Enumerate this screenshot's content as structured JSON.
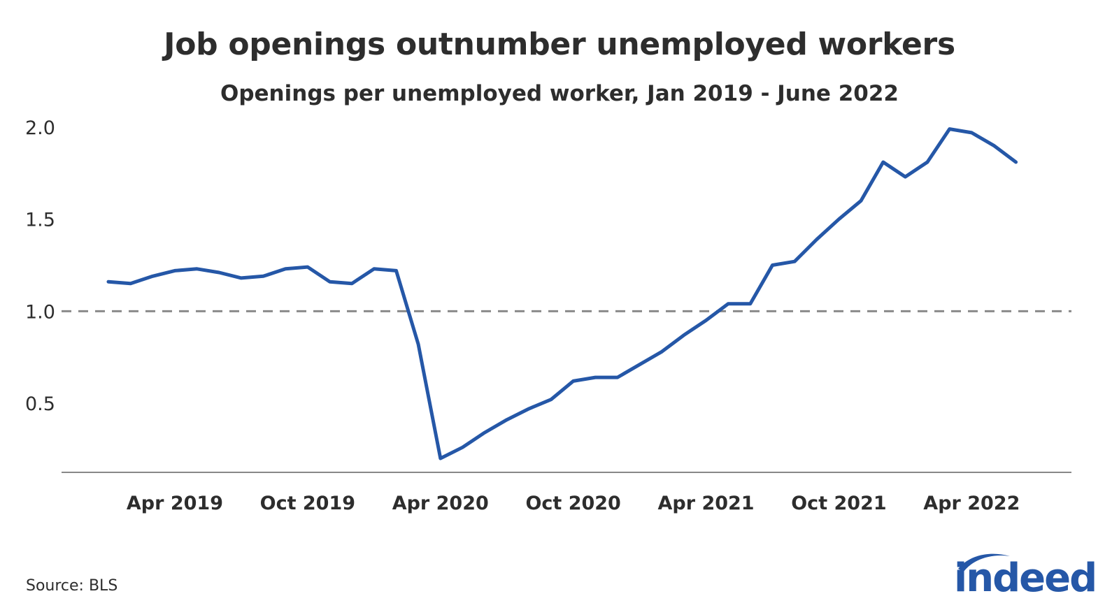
{
  "chart_data": {
    "type": "line",
    "title": "Job openings outnumber unemployed workers",
    "subtitle": "Openings per unemployed worker, Jan 2019 - June 2022",
    "xlabel": "",
    "ylabel": "",
    "x_start": "2019-01",
    "x": [
      "Jan 2019",
      "Feb 2019",
      "Mar 2019",
      "Apr 2019",
      "May 2019",
      "Jun 2019",
      "Jul 2019",
      "Aug 2019",
      "Sep 2019",
      "Oct 2019",
      "Nov 2019",
      "Dec 2019",
      "Jan 2020",
      "Feb 2020",
      "Mar 2020",
      "Apr 2020",
      "May 2020",
      "Jun 2020",
      "Jul 2020",
      "Aug 2020",
      "Sep 2020",
      "Oct 2020",
      "Nov 2020",
      "Dec 2020",
      "Jan 2021",
      "Feb 2021",
      "Mar 2021",
      "Apr 2021",
      "May 2021",
      "Jun 2021",
      "Jul 2021",
      "Aug 2021",
      "Sep 2021",
      "Oct 2021",
      "Nov 2021",
      "Dec 2021",
      "Jan 2022",
      "Feb 2022",
      "Mar 2022",
      "Apr 2022",
      "May 2022",
      "Jun 2022"
    ],
    "series": [
      {
        "values": [
          1.16,
          1.15,
          1.19,
          1.22,
          1.23,
          1.21,
          1.18,
          1.19,
          1.23,
          1.24,
          1.16,
          1.15,
          1.23,
          1.22,
          0.82,
          0.2,
          0.26,
          0.34,
          0.41,
          0.47,
          0.52,
          0.62,
          0.64,
          0.64,
          0.71,
          0.78,
          0.87,
          0.95,
          1.04,
          1.04,
          1.25,
          1.27,
          1.39,
          1.5,
          1.6,
          1.81,
          1.73,
          1.81,
          1.99,
          1.97,
          1.9,
          1.81
        ],
        "color": "#2557a7"
      }
    ],
    "yticks": [
      "0.5",
      "1.0",
      "1.5",
      "2.0"
    ],
    "ytick_values": [
      0.5,
      1.0,
      1.5,
      2.0
    ],
    "xticks": [
      {
        "label": "Apr 2019",
        "x": "Apr 2019"
      },
      {
        "label": "Oct 2019",
        "x": "Oct 2019"
      },
      {
        "label": "Apr 2020",
        "x": "Apr 2020"
      },
      {
        "label": "Oct 2020",
        "x": "Oct 2020"
      },
      {
        "label": "Apr 2021",
        "x": "Apr 2021"
      },
      {
        "label": "Oct 2021",
        "x": "Oct 2021"
      },
      {
        "label": "Apr 2022",
        "x": "Apr 2022"
      }
    ],
    "ylim": [
      0.0,
      2.0
    ],
    "reference_line": {
      "y": 1.0,
      "style": "dashed",
      "color": "#8a8a8a"
    },
    "grid": false,
    "legend": "none",
    "axis_color": "#888888"
  },
  "footer": {
    "source": "Source: BLS",
    "logo_text": "indeed",
    "logo_color": "#2557a7"
  }
}
